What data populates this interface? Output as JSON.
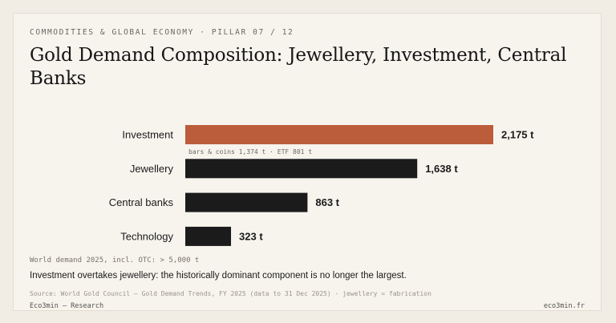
{
  "header": {
    "kicker": "COMMODITIES & GLOBAL ECONOMY · PILLAR 07 / 12",
    "title": "Gold Demand Composition: Jewellery, Investment, Central Banks"
  },
  "colors": {
    "highlight": "#bb5c3a",
    "default_bar": "#1b1b1b",
    "background": "#f7f4ee"
  },
  "chart_data": {
    "type": "bar",
    "orientation": "horizontal",
    "categories": [
      "Investment",
      "Jewellery",
      "Central banks",
      "Technology"
    ],
    "values": [
      2175,
      1638,
      863,
      323
    ],
    "value_labels": [
      "2,175 t",
      "1,638 t",
      "863 t",
      "323 t"
    ],
    "highlight_index": 0,
    "annotations": [
      {
        "category": "Investment",
        "text": "bars & coins 1,374 t · ETF 801 t"
      }
    ],
    "xlim": [
      0,
      2400
    ],
    "grid": false
  },
  "footer": {
    "note": "World demand 2025, incl. OTC: > 5,000 t",
    "takeaway": "Investment overtakes jewellery: the historically dominant component is no longer the largest.",
    "source": "Source: World Gold Council — Gold Demand Trends, FY 2025 (data to 31 Dec 2025) · jewellery = fabrication",
    "brand": "Eco3min — Research",
    "site": "eco3min.fr"
  }
}
